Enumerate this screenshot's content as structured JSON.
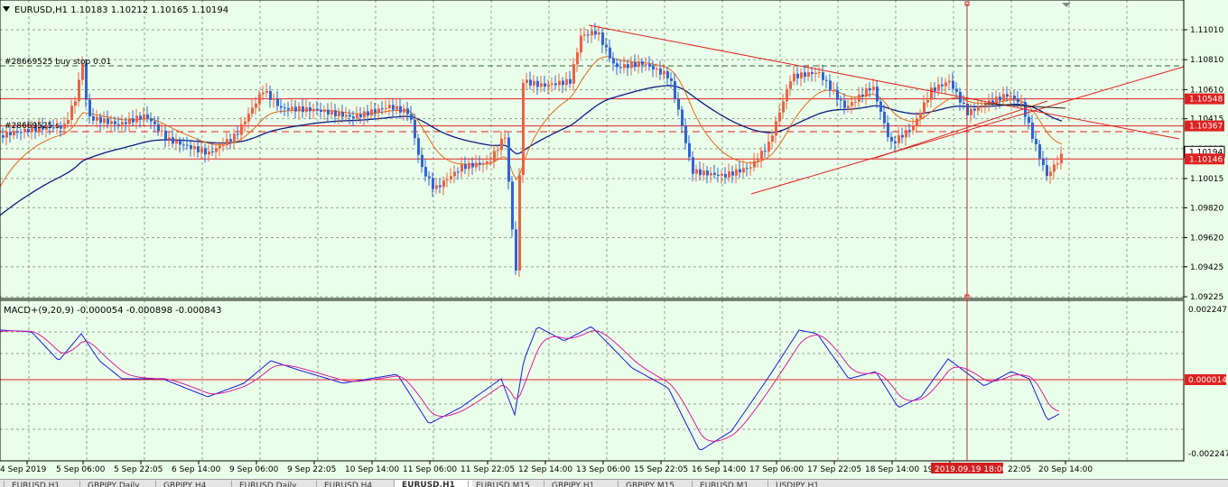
{
  "colors": {
    "background": "#eaffea",
    "grid": "#8fa58f",
    "frame": "#000000",
    "candle_up": "#f06040",
    "candle_down": "#2f62d8",
    "ma_fast": "#e06818",
    "ma_slow": "#0a1a80",
    "level_line": "#e02020",
    "macd_main": "#1a1adc",
    "macd_signal": "#d81b9a",
    "cursor_line": "#d02020"
  },
  "chart_header": {
    "menu_icon": "triangle-down-icon",
    "symbol_info": "EURUSD,H1  1.10183 1.10212 1.10165 1.10194"
  },
  "order_labels": {
    "buy_stop": "#28669525 buy stop 0.01",
    "order2": "#28669525 s"
  },
  "price_axis": {
    "ticks": [
      "1.11010",
      "1.10810",
      "1.10610",
      "1.10415",
      "1.10215",
      "1.10015",
      "1.09820",
      "1.09620",
      "1.09425",
      "1.09225"
    ],
    "tick_values": [
      1.1101,
      1.1081,
      1.1061,
      1.10415,
      1.10215,
      1.10015,
      1.0982,
      1.0962,
      1.09425,
      1.09225
    ],
    "highlight_labels": [
      {
        "text": "1.10548",
        "value": 1.10548
      },
      {
        "text": "1.10367",
        "value": 1.10367
      },
      {
        "text": "1.10194",
        "value": 1.10194
      },
      {
        "text": "1.10146",
        "value": 1.10146
      }
    ]
  },
  "macd": {
    "header": "MACD+(9,20,9) -0.000054 -0.000898 -0.000843",
    "axis_top": "0.002247",
    "axis_zero": "0.000014",
    "axis_bottom": "-0.002247"
  },
  "time_axis": {
    "labels": [
      "4 Sep 2019",
      "5 Sep 06:00",
      "5 Sep 22:05",
      "6 Sep 14:00",
      "9 Sep 06:00",
      "9 Sep 22:05",
      "10 Sep 14:00",
      "11 Sep 06:00",
      "11 Sep 22:05",
      "12 Sep 14:00",
      "13 Sep 06:00",
      "15 Sep 22:05",
      "16 Sep 14:00",
      "17 Sep 06:00",
      "17 Sep 22:05",
      "18 Sep 14:00",
      "19",
      "20 Sep 14:00"
    ],
    "label_extra": "22:05",
    "cursor_label": "2019.09.19 18:00"
  },
  "tabs": [
    "EURUSD,H1",
    "GBPJPY,Daily",
    "GBPJPY,H4",
    "EURUSD,Daily",
    "EURUSD,H4",
    "EURUSD,H1",
    "EURUSD,M15",
    "GBPJPY,H1",
    "GBPJPY,M15",
    "EURUSD,M1",
    "USDJPY,H1"
  ],
  "active_tab_index": 5
}
